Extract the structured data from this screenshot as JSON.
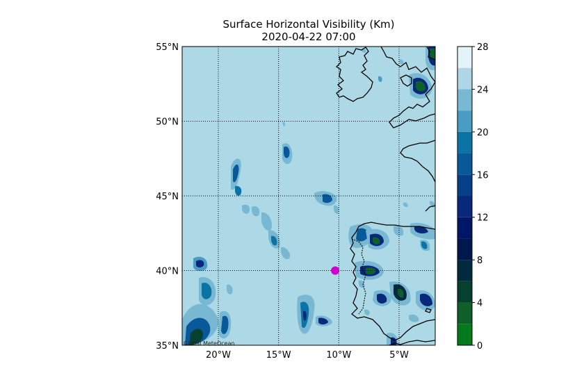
{
  "title": {
    "line1": "Surface Horizontal Visibility (Km)",
    "line2": "2020-04-22 07:00"
  },
  "map": {
    "lat_range": [
      35,
      55
    ],
    "lon_range": [
      -23,
      -2
    ],
    "lat_ticks": [
      {
        "value": 35,
        "label": "35°N"
      },
      {
        "value": 40,
        "label": "40°N"
      },
      {
        "value": 45,
        "label": "45°N"
      },
      {
        "value": 50,
        "label": "50°N"
      },
      {
        "value": 55,
        "label": "55°N"
      }
    ],
    "lon_ticks": [
      {
        "value": -20,
        "label": "20°W"
      },
      {
        "value": -15,
        "label": "15°W"
      },
      {
        "value": -10,
        "label": "10°W"
      },
      {
        "value": -5,
        "label": "5°W"
      }
    ],
    "marker": {
      "lon": -10.3,
      "lat": 40.0,
      "color": "#cc00cc"
    },
    "credit": "Global MeteOcean",
    "background_color": "#add8e6"
  },
  "colorbar": {
    "min": 0,
    "max": 28,
    "tick_labels": [
      "0",
      "4",
      "8",
      "12",
      "16",
      "20",
      "24",
      "28"
    ],
    "levels": [
      {
        "from": 0,
        "to": 2,
        "color": "#007a1a"
      },
      {
        "from": 2,
        "to": 4,
        "color": "#0e5f2a"
      },
      {
        "from": 4,
        "to": 6,
        "color": "#06402f"
      },
      {
        "from": 6,
        "to": 8,
        "color": "#022a3e"
      },
      {
        "from": 8,
        "to": 10,
        "color": "#00184d"
      },
      {
        "from": 10,
        "to": 12,
        "color": "#001666"
      },
      {
        "from": 12,
        "to": 14,
        "color": "#08297b"
      },
      {
        "from": 14,
        "to": 16,
        "color": "#07408a"
      },
      {
        "from": 16,
        "to": 18,
        "color": "#08589a"
      },
      {
        "from": 18,
        "to": 20,
        "color": "#0a74a5"
      },
      {
        "from": 20,
        "to": 22,
        "color": "#4a9cc2"
      },
      {
        "from": 22,
        "to": 24,
        "color": "#78b8d2"
      },
      {
        "from": 24,
        "to": 26,
        "color": "#aed6e6"
      },
      {
        "from": 26,
        "to": 28,
        "color": "#e4f3f8"
      }
    ]
  }
}
